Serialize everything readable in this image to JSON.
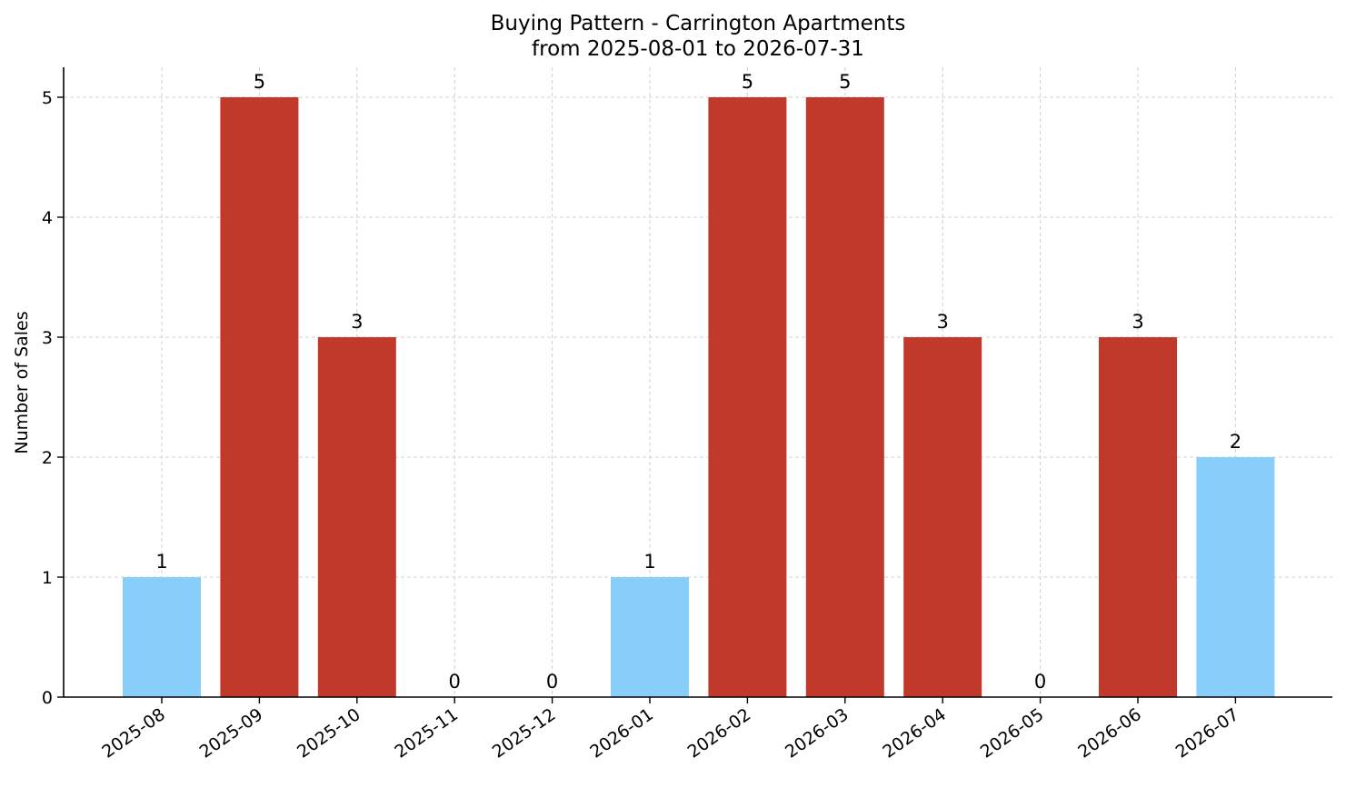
{
  "chart_data": {
    "type": "bar",
    "title": "Buying Pattern - Carrington Apartments",
    "subtitle": "from 2025-08-01 to 2026-07-31",
    "xlabel": "",
    "ylabel": "Number of Sales",
    "categories": [
      "2025-08",
      "2025-09",
      "2025-10",
      "2025-11",
      "2025-12",
      "2026-01",
      "2026-02",
      "2026-03",
      "2026-04",
      "2026-05",
      "2026-06",
      "2026-07"
    ],
    "values": [
      1,
      5,
      3,
      0,
      0,
      1,
      5,
      5,
      3,
      0,
      3,
      2
    ],
    "ylim": [
      0,
      5.25
    ],
    "yticks": [
      0,
      1,
      2,
      3,
      4,
      5
    ],
    "grid": true,
    "legend": "none",
    "colors": {
      "high": "#c0392b",
      "low": "#87cefa"
    },
    "bar_colors": [
      "#87cefa",
      "#c0392b",
      "#c0392b",
      "#87cefa",
      "#87cefa",
      "#87cefa",
      "#c0392b",
      "#c0392b",
      "#c0392b",
      "#87cefa",
      "#c0392b",
      "#87cefa"
    ]
  }
}
